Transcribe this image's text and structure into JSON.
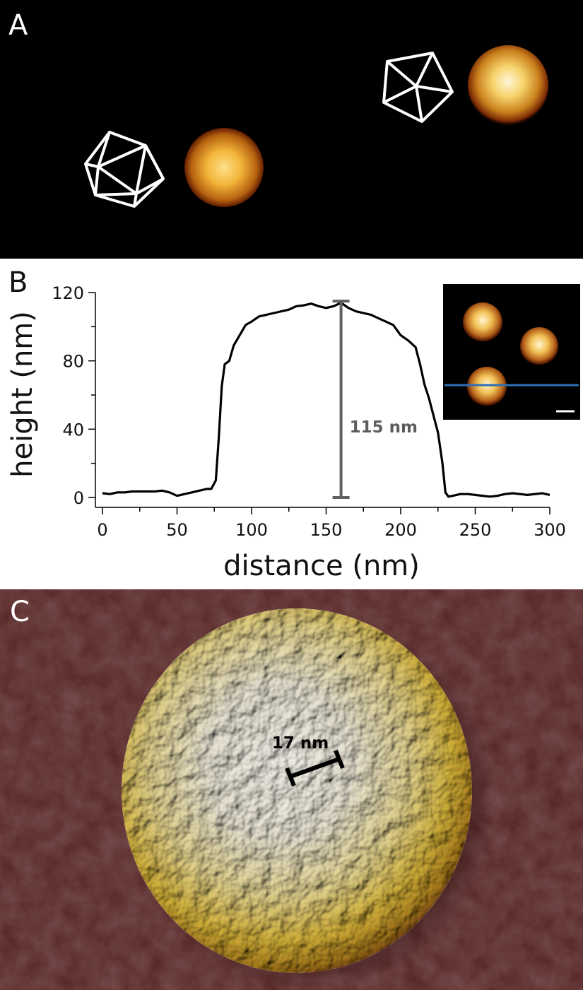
{
  "panels": {
    "a": {
      "label": "A"
    },
    "b": {
      "label": "B"
    },
    "c": {
      "label": "C",
      "scale_annotation": "17 nm"
    }
  },
  "chart_data": {
    "type": "line",
    "xlabel": "distance (nm)",
    "ylabel": "height (nm)",
    "xlim": [
      0,
      300
    ],
    "ylim": [
      0,
      120
    ],
    "xticks": [
      0,
      50,
      100,
      150,
      200,
      250,
      300
    ],
    "yticks": [
      0,
      40,
      80,
      120
    ],
    "annotations": [
      {
        "text": "115 nm",
        "x": 160,
        "y_from": 0,
        "y_to": 115
      }
    ],
    "series": [
      {
        "x": [
          0,
          5,
          10,
          15,
          20,
          25,
          30,
          35,
          40,
          45,
          50,
          55,
          60,
          65,
          70,
          73,
          76,
          78,
          80,
          82,
          85,
          88,
          92,
          96,
          100,
          105,
          110,
          115,
          120,
          125,
          130,
          135,
          140,
          145,
          150,
          155,
          160,
          165,
          170,
          175,
          180,
          185,
          190,
          195,
          200,
          205,
          210,
          213,
          216,
          219,
          222,
          225,
          228,
          230,
          232,
          235,
          240,
          245,
          250,
          255,
          260,
          265,
          270,
          275,
          280,
          285,
          290,
          295,
          300
        ],
        "y": [
          2.5,
          2,
          3,
          3,
          3.5,
          3.5,
          3.5,
          3.5,
          4,
          3,
          1,
          2,
          3,
          4,
          5,
          5,
          10,
          35,
          65,
          78,
          80,
          89,
          95,
          101,
          103,
          106,
          107,
          108,
          109,
          110,
          112,
          112.5,
          113.5,
          112,
          111,
          112,
          114,
          111,
          109,
          108,
          107,
          105,
          103,
          101,
          95,
          92,
          88,
          78,
          66,
          58,
          48,
          38,
          20,
          3,
          0.5,
          1,
          2,
          2,
          1.5,
          1,
          0.5,
          1,
          2,
          2.5,
          2,
          1.5,
          2,
          2.5,
          1.5
        ]
      }
    ]
  },
  "colors": {
    "profile_line": "#000000",
    "marker": "#606060",
    "inset_line": "#2e6fb5",
    "particle_core": "#fff2c8",
    "particle_edge": "#6a1f00",
    "surface": "#4a1e1e"
  }
}
